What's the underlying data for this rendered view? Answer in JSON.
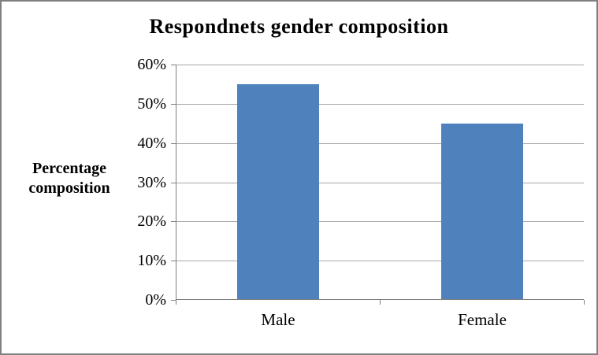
{
  "figure": {
    "background_color": "#FFFFFF",
    "border_color": "#808080"
  },
  "chart_data": {
    "type": "bar",
    "title": "Respondnets gender composition",
    "categories": [
      "Male",
      "Female"
    ],
    "values": [
      55,
      45
    ],
    "unit": "%",
    "xlabel": "",
    "ylabel": "Percentage composition",
    "ylim": [
      0,
      60
    ],
    "yticks": [
      0,
      10,
      20,
      30,
      40,
      50,
      60
    ],
    "ytick_labels": [
      "0%",
      "10%",
      "20%",
      "30%",
      "40%",
      "50%",
      "60%"
    ],
    "grid": true,
    "legend": false,
    "bar_color": "#4F81BD",
    "gridline_color": "#A6A6A6",
    "axis_color": "#7F7F7F"
  }
}
